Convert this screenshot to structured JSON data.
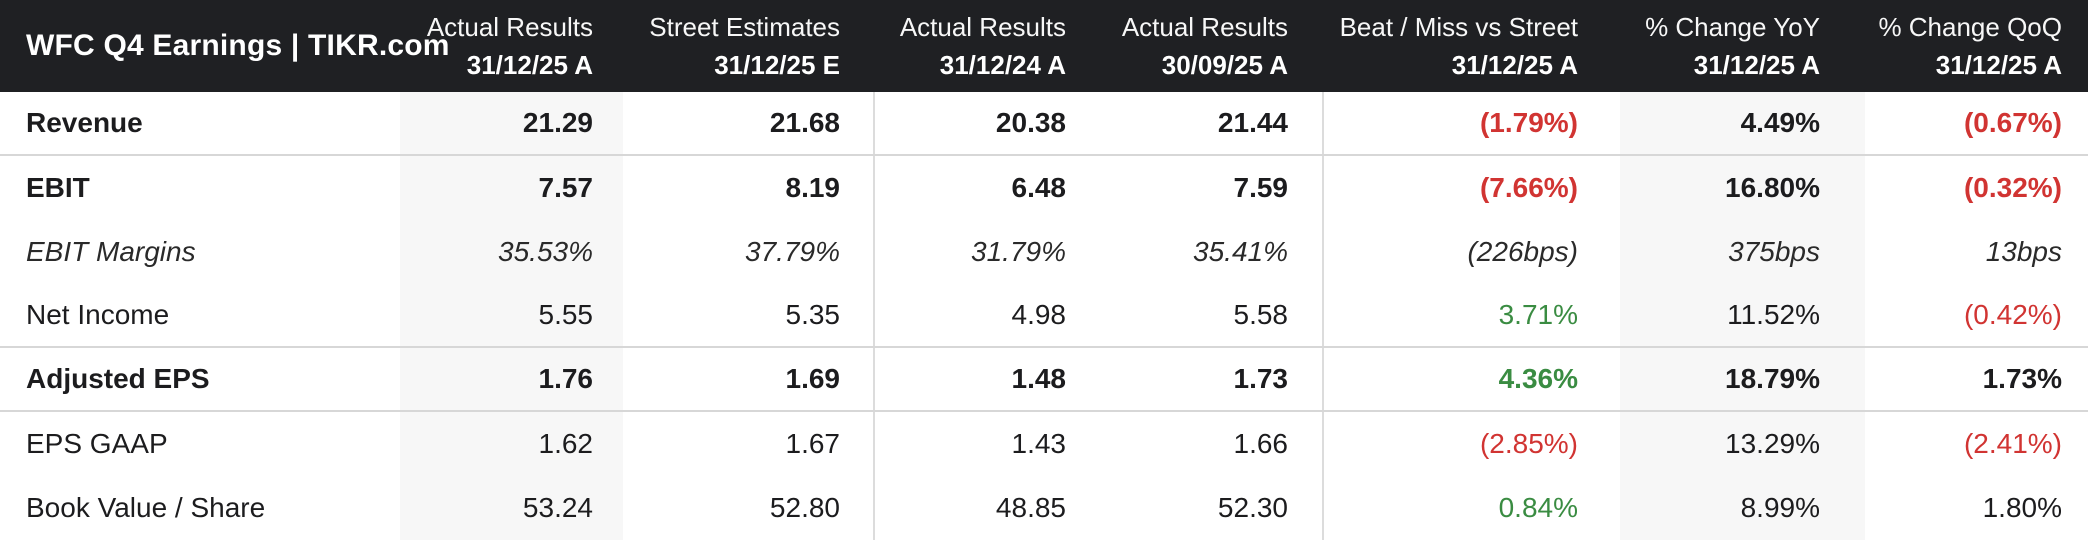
{
  "colors": {
    "header_bg": "#1f2023",
    "negative": "#d13432",
    "positive": "#3a8c42",
    "text": "#1c1c1e",
    "stripe": "#f7f7f7",
    "grid_line": "#d7d7d7",
    "column_divider": "#dcdcdc"
  },
  "chart_data": {
    "type": "table",
    "title": "WFC Q4 Earnings | TIKR.com",
    "columns": [
      {
        "label": "Actual Results",
        "period": "31/12/25 A"
      },
      {
        "label": "Street Estimates",
        "period": "31/12/25 E"
      },
      {
        "label": "Actual Results",
        "period": "31/12/24 A"
      },
      {
        "label": "Actual Results",
        "period": "30/09/25 A"
      },
      {
        "label": "Beat / Miss vs Street",
        "period": "31/12/25 A"
      },
      {
        "label": "% Change YoY",
        "period": "31/12/25 A"
      },
      {
        "label": "% Change QoQ",
        "period": "31/12/25 A"
      }
    ],
    "rows": [
      {
        "label": "Revenue",
        "emphasis": "bold",
        "divider_below": true,
        "cells": [
          {
            "text": "21.29",
            "tone": "neutral"
          },
          {
            "text": "21.68",
            "tone": "neutral"
          },
          {
            "text": "20.38",
            "tone": "neutral"
          },
          {
            "text": "21.44",
            "tone": "neutral"
          },
          {
            "text": "(1.79%)",
            "tone": "negative"
          },
          {
            "text": "4.49%",
            "tone": "neutral"
          },
          {
            "text": "(0.67%)",
            "tone": "negative"
          }
        ]
      },
      {
        "label": "EBIT",
        "emphasis": "bold",
        "divider_below": false,
        "cells": [
          {
            "text": "7.57",
            "tone": "neutral"
          },
          {
            "text": "8.19",
            "tone": "neutral"
          },
          {
            "text": "6.48",
            "tone": "neutral"
          },
          {
            "text": "7.59",
            "tone": "neutral"
          },
          {
            "text": "(7.66%)",
            "tone": "negative"
          },
          {
            "text": "16.80%",
            "tone": "neutral"
          },
          {
            "text": "(0.32%)",
            "tone": "negative"
          }
        ]
      },
      {
        "label": "EBIT Margins",
        "emphasis": "italic",
        "divider_below": false,
        "cells": [
          {
            "text": "35.53%",
            "tone": "neutral"
          },
          {
            "text": "37.79%",
            "tone": "neutral"
          },
          {
            "text": "31.79%",
            "tone": "neutral"
          },
          {
            "text": "35.41%",
            "tone": "neutral"
          },
          {
            "text": "(226bps)",
            "tone": "negative"
          },
          {
            "text": "375bps",
            "tone": "neutral"
          },
          {
            "text": "13bps",
            "tone": "neutral"
          }
        ]
      },
      {
        "label": "Net Income",
        "emphasis": "regular",
        "divider_below": true,
        "cells": [
          {
            "text": "5.55",
            "tone": "neutral"
          },
          {
            "text": "5.35",
            "tone": "neutral"
          },
          {
            "text": "4.98",
            "tone": "neutral"
          },
          {
            "text": "5.58",
            "tone": "neutral"
          },
          {
            "text": "3.71%",
            "tone": "positive"
          },
          {
            "text": "11.52%",
            "tone": "neutral"
          },
          {
            "text": "(0.42%)",
            "tone": "negative"
          }
        ]
      },
      {
        "label": "Adjusted EPS",
        "emphasis": "bold",
        "divider_below": true,
        "cells": [
          {
            "text": "1.76",
            "tone": "neutral"
          },
          {
            "text": "1.69",
            "tone": "neutral"
          },
          {
            "text": "1.48",
            "tone": "neutral"
          },
          {
            "text": "1.73",
            "tone": "neutral"
          },
          {
            "text": "4.36%",
            "tone": "positive"
          },
          {
            "text": "18.79%",
            "tone": "neutral"
          },
          {
            "text": "1.73%",
            "tone": "neutral"
          }
        ]
      },
      {
        "label": "EPS GAAP",
        "emphasis": "regular",
        "divider_below": false,
        "cells": [
          {
            "text": "1.62",
            "tone": "neutral"
          },
          {
            "text": "1.67",
            "tone": "neutral"
          },
          {
            "text": "1.43",
            "tone": "neutral"
          },
          {
            "text": "1.66",
            "tone": "neutral"
          },
          {
            "text": "(2.85%)",
            "tone": "negative"
          },
          {
            "text": "13.29%",
            "tone": "neutral"
          },
          {
            "text": "(2.41%)",
            "tone": "negative"
          }
        ]
      },
      {
        "label": "Book Value / Share",
        "emphasis": "regular",
        "divider_below": false,
        "cells": [
          {
            "text": "53.24",
            "tone": "neutral"
          },
          {
            "text": "52.80",
            "tone": "neutral"
          },
          {
            "text": "48.85",
            "tone": "neutral"
          },
          {
            "text": "52.30",
            "tone": "neutral"
          },
          {
            "text": "0.84%",
            "tone": "positive"
          },
          {
            "text": "8.99%",
            "tone": "neutral"
          },
          {
            "text": "1.80%",
            "tone": "neutral"
          }
        ]
      }
    ]
  }
}
